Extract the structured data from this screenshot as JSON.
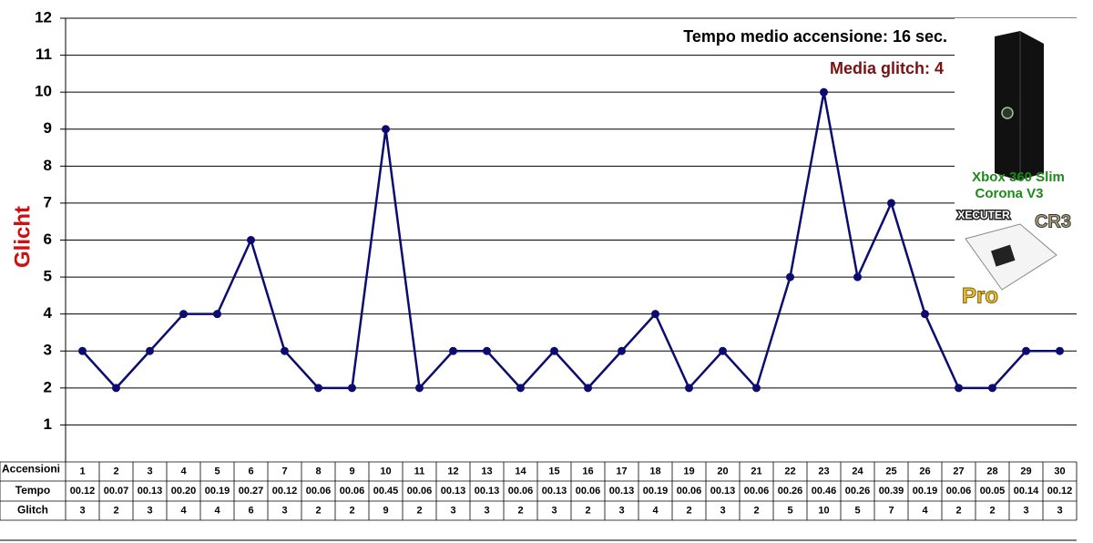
{
  "chart_data": {
    "type": "line",
    "y_label": "Glicht",
    "categories_label": "Accensioni",
    "categories": [
      1,
      2,
      3,
      4,
      5,
      6,
      7,
      8,
      9,
      10,
      11,
      12,
      13,
      14,
      15,
      16,
      17,
      18,
      19,
      20,
      21,
      22,
      23,
      24,
      25,
      26,
      27,
      28,
      29,
      30
    ],
    "series": [
      {
        "name": "Glitch",
        "color": "#0c0c70",
        "values": [
          3,
          2,
          3,
          4,
          4,
          6,
          3,
          2,
          2,
          9,
          2,
          3,
          3,
          2,
          3,
          2,
          3,
          4,
          2,
          3,
          2,
          5,
          10,
          5,
          7,
          4,
          2,
          2,
          3,
          3
        ]
      }
    ],
    "tempo_label": "Tempo",
    "tempo": [
      "00.12",
      "00.07",
      "00.13",
      "00.20",
      "00.19",
      "00.27",
      "00.12",
      "00.06",
      "00.06",
      "00.45",
      "00.06",
      "00.13",
      "00.13",
      "00.06",
      "00.13",
      "00.06",
      "00.13",
      "00.19",
      "00.06",
      "00.13",
      "00.06",
      "00.26",
      "00.46",
      "00.26",
      "00.39",
      "00.19",
      "00.06",
      "00.05",
      "00.14",
      "00.12"
    ],
    "ylim": [
      0,
      12
    ],
    "yticks": [
      1,
      2,
      3,
      4,
      5,
      6,
      7,
      8,
      9,
      10,
      11,
      12
    ],
    "grid": true,
    "annotations": [
      "Tempo medio accensione: 16 sec.",
      "Media glitch: 4"
    ],
    "device": [
      "Xbox 360 Slim",
      "Corona V3"
    ],
    "logo": [
      "XECUTER",
      "CR3",
      "Pro"
    ]
  }
}
